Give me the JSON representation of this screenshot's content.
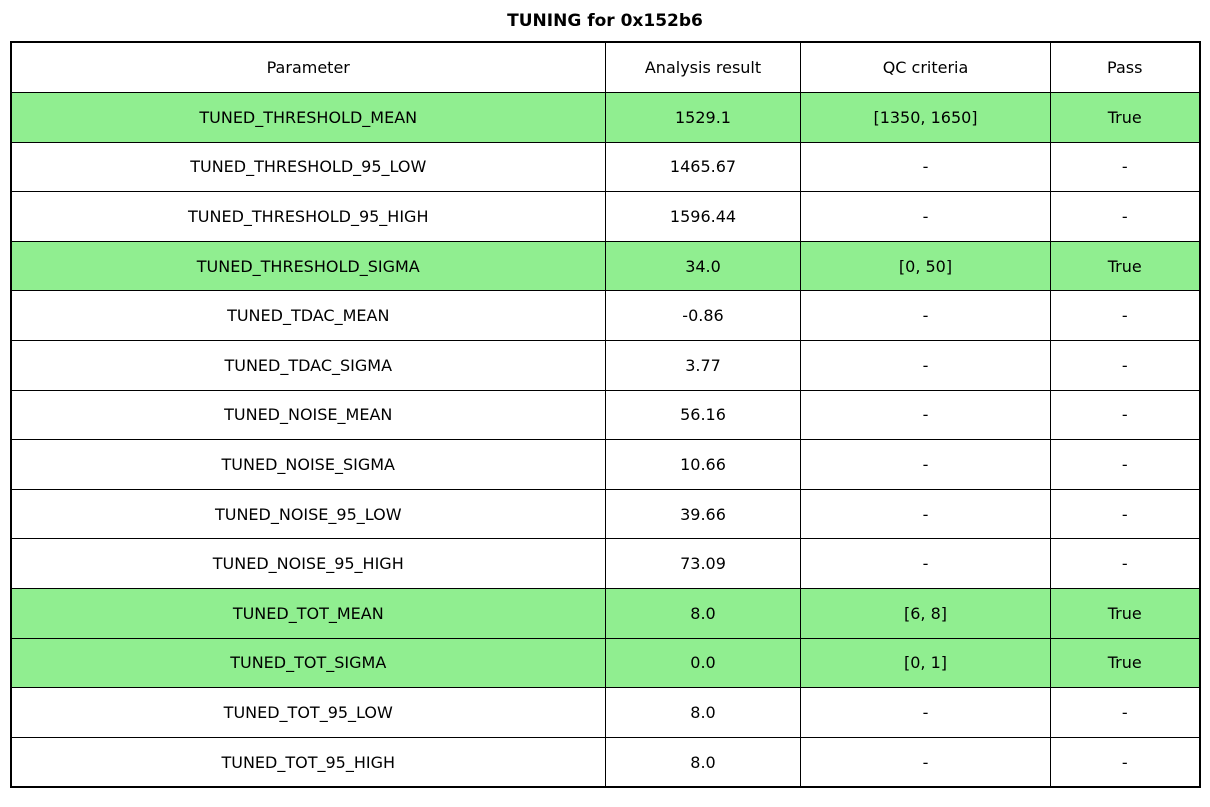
{
  "title": "TUNING for 0x152b6",
  "colors": {
    "pass_row_bg": "#90EE90",
    "border": "#000000",
    "row_bg": "#FFFFFF",
    "text": "#000000"
  },
  "table": {
    "headers": [
      "Parameter",
      "Analysis result",
      "QC criteria",
      "Pass"
    ],
    "rows": [
      {
        "parameter": "TUNED_THRESHOLD_MEAN",
        "result": "1529.1",
        "qc": "[1350, 1650]",
        "pass": "True",
        "highlight": true
      },
      {
        "parameter": "TUNED_THRESHOLD_95_LOW",
        "result": "1465.67",
        "qc": "-",
        "pass": "-",
        "highlight": false
      },
      {
        "parameter": "TUNED_THRESHOLD_95_HIGH",
        "result": "1596.44",
        "qc": "-",
        "pass": "-",
        "highlight": false
      },
      {
        "parameter": "TUNED_THRESHOLD_SIGMA",
        "result": "34.0",
        "qc": "[0, 50]",
        "pass": "True",
        "highlight": true
      },
      {
        "parameter": "TUNED_TDAC_MEAN",
        "result": "-0.86",
        "qc": "-",
        "pass": "-",
        "highlight": false
      },
      {
        "parameter": "TUNED_TDAC_SIGMA",
        "result": "3.77",
        "qc": "-",
        "pass": "-",
        "highlight": false
      },
      {
        "parameter": "TUNED_NOISE_MEAN",
        "result": "56.16",
        "qc": "-",
        "pass": "-",
        "highlight": false
      },
      {
        "parameter": "TUNED_NOISE_SIGMA",
        "result": "10.66",
        "qc": "-",
        "pass": "-",
        "highlight": false
      },
      {
        "parameter": "TUNED_NOISE_95_LOW",
        "result": "39.66",
        "qc": "-",
        "pass": "-",
        "highlight": false
      },
      {
        "parameter": "TUNED_NOISE_95_HIGH",
        "result": "73.09",
        "qc": "-",
        "pass": "-",
        "highlight": false
      },
      {
        "parameter": "TUNED_TOT_MEAN",
        "result": "8.0",
        "qc": "[6, 8]",
        "pass": "True",
        "highlight": true
      },
      {
        "parameter": "TUNED_TOT_SIGMA",
        "result": "0.0",
        "qc": "[0, 1]",
        "pass": "True",
        "highlight": true
      },
      {
        "parameter": "TUNED_TOT_95_LOW",
        "result": "8.0",
        "qc": "-",
        "pass": "-",
        "highlight": false
      },
      {
        "parameter": "TUNED_TOT_95_HIGH",
        "result": "8.0",
        "qc": "-",
        "pass": "-",
        "highlight": false
      }
    ]
  },
  "chart_data": {
    "type": "table",
    "title": "TUNING for 0x152b6",
    "columns": [
      "Parameter",
      "Analysis result",
      "QC criteria",
      "Pass"
    ],
    "rows": [
      [
        "TUNED_THRESHOLD_MEAN",
        "1529.1",
        "[1350, 1650]",
        "True"
      ],
      [
        "TUNED_THRESHOLD_95_LOW",
        "1465.67",
        "-",
        "-"
      ],
      [
        "TUNED_THRESHOLD_95_HIGH",
        "1596.44",
        "-",
        "-"
      ],
      [
        "TUNED_THRESHOLD_SIGMA",
        "34.0",
        "[0, 50]",
        "True"
      ],
      [
        "TUNED_TDAC_MEAN",
        "-0.86",
        "-",
        "-"
      ],
      [
        "TUNED_TDAC_SIGMA",
        "3.77",
        "-",
        "-"
      ],
      [
        "TUNED_NOISE_MEAN",
        "56.16",
        "-",
        "-"
      ],
      [
        "TUNED_NOISE_SIGMA",
        "10.66",
        "-",
        "-"
      ],
      [
        "TUNED_NOISE_95_LOW",
        "39.66",
        "-",
        "-"
      ],
      [
        "TUNED_NOISE_95_HIGH",
        "73.09",
        "-",
        "-"
      ],
      [
        "TUNED_TOT_MEAN",
        "8.0",
        "[6, 8]",
        "True"
      ],
      [
        "TUNED_TOT_SIGMA",
        "0.0",
        "[0, 1]",
        "True"
      ],
      [
        "TUNED_TOT_95_LOW",
        "8.0",
        "-",
        "-"
      ],
      [
        "TUNED_TOT_95_HIGH",
        "8.0",
        "-",
        "-"
      ]
    ],
    "highlighted_rows": [
      0,
      3,
      10,
      11
    ],
    "highlight_color": "#90EE90",
    "layout": "header row on top, all cells center-aligned, black grid lines"
  }
}
